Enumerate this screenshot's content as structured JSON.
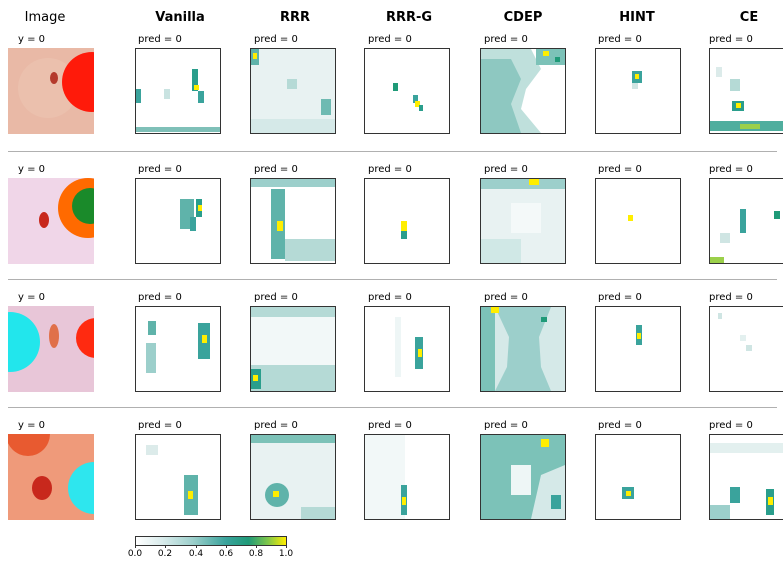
{
  "columns": [
    {
      "label": "Image",
      "bold": false
    },
    {
      "label": "Vanilla",
      "bold": true
    },
    {
      "label": "RRR",
      "bold": true
    },
    {
      "label": "RRR-G",
      "bold": true
    },
    {
      "label": "CDEP",
      "bold": true
    },
    {
      "label": "HINT",
      "bold": true
    },
    {
      "label": "CE",
      "bold": true
    }
  ],
  "rows": [
    {
      "y_label": "y = 0",
      "pred_label": "pred = 0"
    },
    {
      "y_label": "y = 0",
      "pred_label": "pred = 0"
    },
    {
      "y_label": "y = 0",
      "pred_label": "pred = 0"
    },
    {
      "y_label": "y = 0",
      "pred_label": "pred = 0"
    }
  ],
  "colorbar": {
    "ticks": [
      "0.0",
      "0.2",
      "0.4",
      "0.6",
      "0.8",
      "1.0"
    ],
    "colors": [
      "#ffffff",
      "#9ccfcb",
      "#1f9a78",
      "#ffee00"
    ]
  }
}
